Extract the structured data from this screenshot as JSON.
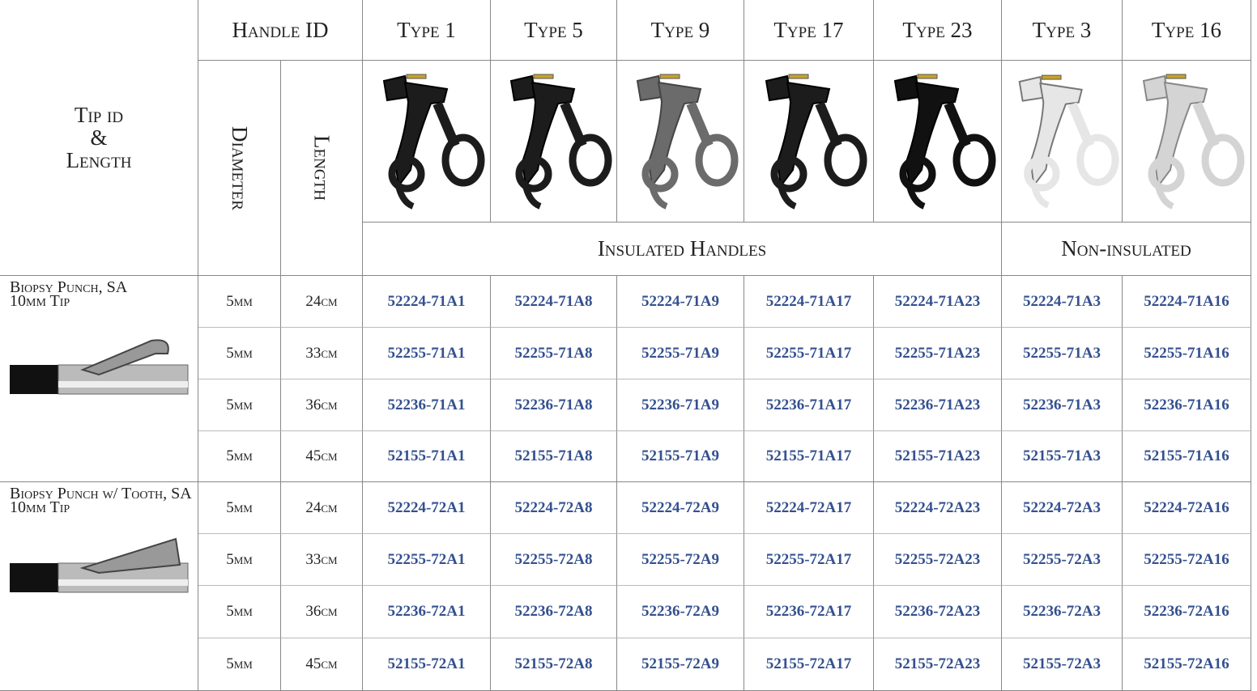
{
  "header": {
    "tip_id": [
      "Tip id",
      "&",
      "Length"
    ],
    "handle_id": "Handle ID",
    "diameter": "Diameter",
    "length": "Length",
    "types": [
      "Type 1",
      "Type 5",
      "Type  9",
      "Type 17",
      "Type 23",
      "Type  3",
      "Type 16"
    ],
    "insulated": "Insulated Handles",
    "non_insulated": "Non-insulated"
  },
  "groups": [
    {
      "name": "Biopsy Punch, SA",
      "tip": "10mm Tip",
      "rows": [
        {
          "diameter": "5mm",
          "length": "24cm",
          "parts": [
            "52224-71A1",
            "52224-71A8",
            "52224-71A9",
            "52224-71A17",
            "52224-71A23",
            "52224-71A3",
            "52224-71A16"
          ]
        },
        {
          "diameter": "5mm",
          "length": "33cm",
          "parts": [
            "52255-71A1",
            "52255-71A8",
            "52255-71A9",
            "52255-71A17",
            "52255-71A23",
            "52255-71A3",
            "52255-71A16"
          ]
        },
        {
          "diameter": "5mm",
          "length": "36cm",
          "parts": [
            "52236-71A1",
            "52236-71A8",
            "52236-71A9",
            "52236-71A17",
            "52236-71A23",
            "52236-71A3",
            "52236-71A16"
          ]
        },
        {
          "diameter": "5mm",
          "length": "45cm",
          "parts": [
            "52155-71A1",
            "52155-71A8",
            "52155-71A9",
            "52155-71A17",
            "52155-71A23",
            "52155-71A3",
            "52155-71A16"
          ]
        }
      ]
    },
    {
      "name": "Biopsy Punch w/ Tooth, SA",
      "tip": "10mm Tip",
      "rows": [
        {
          "diameter": "5mm",
          "length": "24cm",
          "parts": [
            "52224-72A1",
            "52224-72A8",
            "52224-72A9",
            "52224-72A17",
            "52224-72A23",
            "52224-72A3",
            "52224-72A16"
          ]
        },
        {
          "diameter": "5mm",
          "length": "33cm",
          "parts": [
            "52255-72A1",
            "52255-72A8",
            "52255-72A9",
            "52255-72A17",
            "52255-72A23",
            "52255-72A3",
            "52255-72A16"
          ]
        },
        {
          "diameter": "5mm",
          "length": "36cm",
          "parts": [
            "52236-72A1",
            "52236-72A8",
            "52236-72A9",
            "52236-72A17",
            "52236-72A23",
            "52236-72A3",
            "52236-72A16"
          ]
        },
        {
          "diameter": "5mm",
          "length": "45cm",
          "parts": [
            "52155-72A1",
            "52155-72A8",
            "52155-72A9",
            "52155-72A17",
            "52155-72A23",
            "52155-72A3",
            "52155-72A16"
          ]
        }
      ]
    }
  ]
}
